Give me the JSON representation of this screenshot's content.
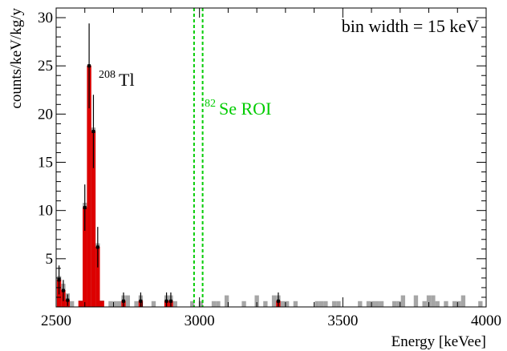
{
  "chart_data": {
    "type": "bar",
    "xlabel": "Energy [keVee]",
    "ylabel": "counts/keV/kg/y",
    "xlim": [
      2500,
      4000
    ],
    "ylim": [
      0,
      31
    ],
    "x_ticks": [
      "2500",
      "3000",
      "3500",
      "4000"
    ],
    "y_ticks": [
      "5",
      "10",
      "15",
      "20",
      "25",
      "30"
    ],
    "bin_width_keV": 15,
    "annotations": {
      "bin_width": "bin width = 15 keV",
      "tl_sup": "208",
      "tl_text": "Tl",
      "roi_sup": "82",
      "roi_text": "Se ROI"
    },
    "roi_lines_keV": [
      2981,
      3011
    ],
    "colors": {
      "red": "#dd0000",
      "gray": "#a6a6a6",
      "roi": "#00cc00"
    },
    "series": [
      {
        "color": "red",
        "bins": [
          [
            2510,
            2.8
          ],
          [
            2525,
            1.7
          ],
          [
            2540,
            0.7
          ],
          [
            2585,
            0.6
          ],
          [
            2600,
            10.3
          ],
          [
            2615,
            25.0
          ],
          [
            2630,
            18.2
          ],
          [
            2645,
            6.2
          ],
          [
            2660,
            0.6
          ],
          [
            2735,
            0.6
          ],
          [
            2795,
            0.6
          ],
          [
            2885,
            0.6
          ],
          [
            2900,
            0.6
          ],
          [
            3275,
            0.6
          ]
        ],
        "errors": [
          [
            2510,
            1.5
          ],
          [
            2525,
            1.1
          ],
          [
            2540,
            0.6
          ],
          [
            2600,
            2.4
          ],
          [
            2615,
            4.4
          ],
          [
            2630,
            3.8
          ],
          [
            2645,
            2.1
          ],
          [
            2735,
            0.9
          ],
          [
            2795,
            0.9
          ],
          [
            2885,
            0.9
          ],
          [
            2900,
            0.9
          ],
          [
            3275,
            0.9
          ]
        ]
      },
      {
        "color": "gray",
        "bins": [
          [
            2510,
            3.2
          ],
          [
            2525,
            2.4
          ],
          [
            2540,
            1.4
          ],
          [
            2555,
            0.6
          ],
          [
            2600,
            10.8
          ],
          [
            2615,
            25.0
          ],
          [
            2630,
            18.6
          ],
          [
            2645,
            6.6
          ],
          [
            2690,
            0.6
          ],
          [
            2705,
            0.6
          ],
          [
            2720,
            0.6
          ],
          [
            2735,
            1.2
          ],
          [
            2750,
            1.2
          ],
          [
            2780,
            0.6
          ],
          [
            2795,
            1.2
          ],
          [
            2840,
            0.6
          ],
          [
            2885,
            1.2
          ],
          [
            2900,
            1.2
          ],
          [
            2915,
            0.6
          ],
          [
            2975,
            0.6
          ],
          [
            3005,
            0.6
          ],
          [
            3050,
            0.6
          ],
          [
            3065,
            0.6
          ],
          [
            3095,
            1.2
          ],
          [
            3155,
            0.6
          ],
          [
            3200,
            1.2
          ],
          [
            3230,
            0.6
          ],
          [
            3260,
            1.2
          ],
          [
            3275,
            1.2
          ],
          [
            3290,
            0.6
          ],
          [
            3305,
            0.6
          ],
          [
            3335,
            0.6
          ],
          [
            3410,
            0.6
          ],
          [
            3425,
            0.6
          ],
          [
            3440,
            0.6
          ],
          [
            3470,
            0.6
          ],
          [
            3485,
            0.6
          ],
          [
            3560,
            0.6
          ],
          [
            3590,
            0.6
          ],
          [
            3605,
            0.6
          ],
          [
            3620,
            0.6
          ],
          [
            3635,
            0.6
          ],
          [
            3680,
            0.6
          ],
          [
            3695,
            0.6
          ],
          [
            3710,
            1.2
          ],
          [
            3755,
            1.2
          ],
          [
            3785,
            0.6
          ],
          [
            3800,
            1.2
          ],
          [
            3815,
            1.2
          ],
          [
            3830,
            0.6
          ],
          [
            3860,
            0.6
          ],
          [
            3890,
            0.6
          ],
          [
            3905,
            0.6
          ],
          [
            3920,
            1.2
          ],
          [
            3980,
            0.6
          ]
        ]
      }
    ]
  }
}
